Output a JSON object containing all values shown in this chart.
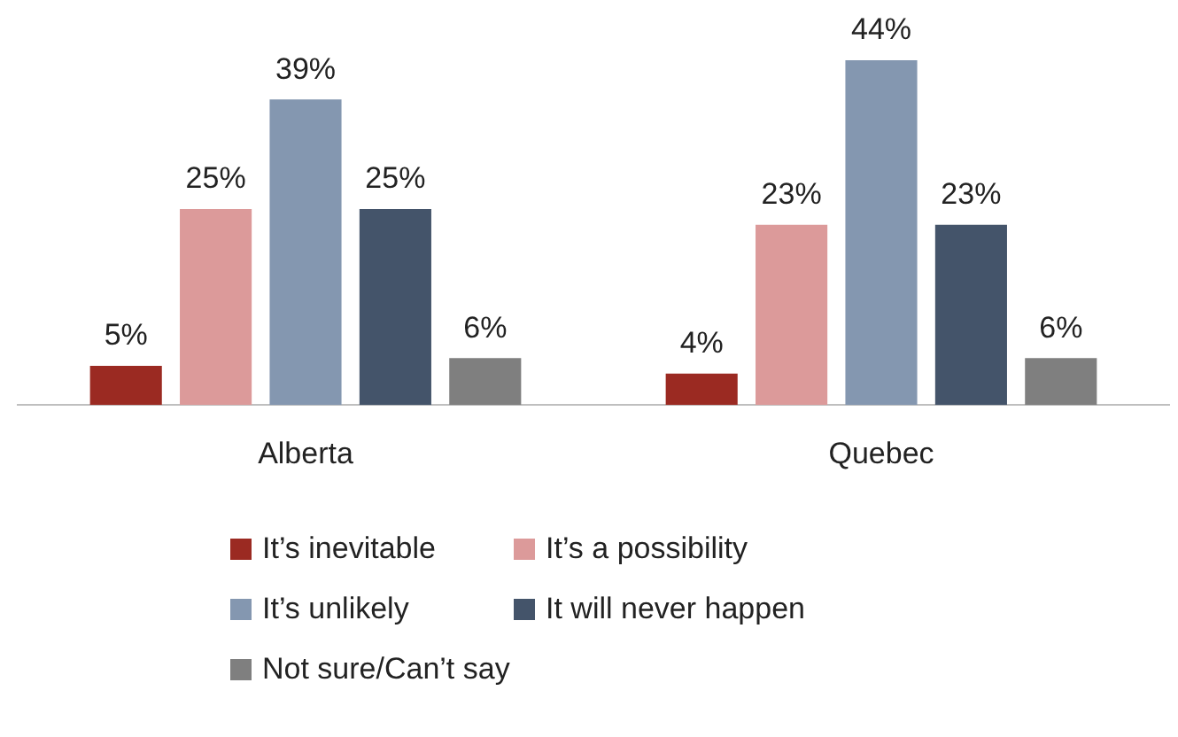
{
  "chart_data": {
    "type": "bar",
    "categories": [
      "Alberta",
      "Quebec"
    ],
    "series": [
      {
        "name": "It’s inevitable",
        "color": "#9b2a22",
        "values": [
          5,
          4
        ],
        "value_labels": [
          "5%",
          "4%"
        ]
      },
      {
        "name": "It’s a possibility",
        "color": "#dc9a9a",
        "values": [
          25,
          23
        ],
        "value_labels": [
          "25%",
          "23%"
        ]
      },
      {
        "name": "It’s unlikely",
        "color": "#8497b0",
        "values": [
          39,
          44
        ],
        "value_labels": [
          "39%",
          "44%"
        ]
      },
      {
        "name": "It will never happen",
        "color": "#44546a",
        "values": [
          25,
          23
        ],
        "value_labels": [
          "25%",
          "23%"
        ]
      },
      {
        "name": "Not sure/Can’t say",
        "color": "#7f7f7f",
        "values": [
          6,
          6
        ],
        "value_labels": [
          "6%",
          "6%"
        ]
      }
    ],
    "legend": "bottom",
    "grid": false
  }
}
